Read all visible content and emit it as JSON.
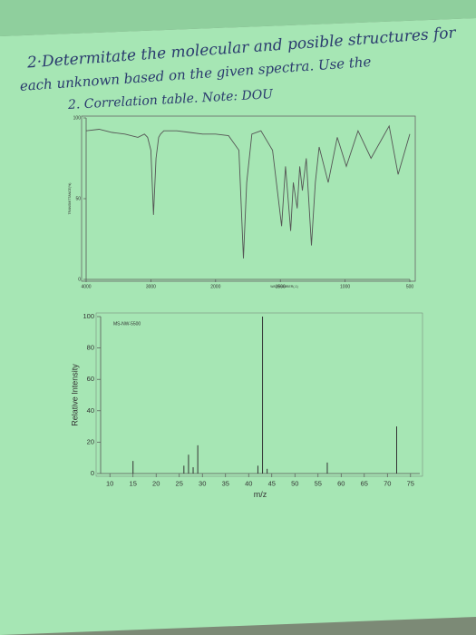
{
  "handwriting": {
    "line1": "2·Determitate the molecular and posible structures for",
    "line2": "each unknown based on the given spectra. Use the",
    "line3": "2. Correlation table. Note: DOU"
  },
  "chart_data": [
    {
      "type": "line",
      "xlabel": "WAVENUMBER(-1)",
      "ylabel": "TRANSMITTANCE(%)",
      "x": [
        4000,
        3800,
        3600,
        3400,
        3200,
        3100,
        3050,
        3000,
        2960,
        2920,
        2880,
        2850,
        2800,
        2600,
        2400,
        2200,
        2000,
        1900,
        1820,
        1785,
        1760,
        1720,
        1650,
        1560,
        1490,
        1460,
        1420,
        1400,
        1370,
        1350,
        1330,
        1300,
        1260,
        1230,
        1200,
        1130,
        1060,
        990,
        900,
        800,
        660,
        590,
        500
      ],
      "values": [
        92,
        93,
        91,
        90,
        88,
        90,
        88,
        80,
        40,
        75,
        88,
        90,
        92,
        92,
        91,
        90,
        90,
        89,
        80,
        13,
        60,
        90,
        92,
        80,
        33,
        70,
        30,
        60,
        44,
        70,
        55,
        75,
        21,
        60,
        82,
        60,
        88,
        70,
        92,
        75,
        95,
        65,
        90
      ],
      "color": "#555555",
      "xlim": [
        4000,
        500
      ],
      "ylim": [
        0,
        100
      ],
      "xticks": [
        4000,
        3000,
        2000,
        1500,
        1000,
        500
      ],
      "yticks": [
        0,
        50,
        100
      ]
    },
    {
      "type": "bar",
      "title": "MS-NW-5500",
      "xlabel": "m/z",
      "ylabel": "Relative Intensity",
      "x": [
        15,
        26,
        27,
        28,
        29,
        42,
        43,
        44,
        57,
        72
      ],
      "values": [
        8,
        5,
        12,
        4,
        18,
        5,
        100,
        3,
        7,
        30
      ],
      "color": "#333333",
      "xlim": [
        8,
        77
      ],
      "ylim": [
        0,
        100
      ],
      "xticks": [
        10,
        15,
        20,
        25,
        30,
        35,
        40,
        45,
        50,
        55,
        60,
        65,
        70,
        75
      ],
      "yticks": [
        0,
        20,
        40,
        60,
        80,
        100
      ]
    }
  ]
}
